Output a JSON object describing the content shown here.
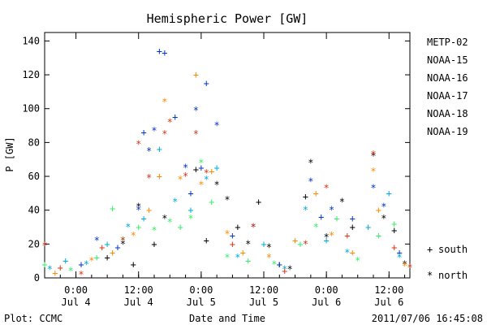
{
  "chart_data": {
    "type": "scatter",
    "title": "Hemispheric Power [GW]",
    "ylabel": "P [GW]",
    "xlabel": "Date and Time",
    "ylim": [
      0,
      145
    ],
    "yticks": [
      0,
      20,
      40,
      60,
      80,
      100,
      120,
      140
    ],
    "xlim": [
      "2011-07-03T18:00",
      "2011-07-06T16:00"
    ],
    "xticks": [
      {
        "x": "2011-07-04T00:00",
        "time": "0:00",
        "date": "Jul 4"
      },
      {
        "x": "2011-07-04T12:00",
        "time": "12:00",
        "date": "Jul 4"
      },
      {
        "x": "2011-07-05T00:00",
        "time": "0:00",
        "date": "Jul 5"
      },
      {
        "x": "2011-07-05T12:00",
        "time": "12:00",
        "date": "Jul 5"
      },
      {
        "x": "2011-07-06T00:00",
        "time": "0:00",
        "date": "Jul 6"
      },
      {
        "x": "2011-07-06T12:00",
        "time": "12:00",
        "date": "Jul 6"
      }
    ],
    "legend_position": "right",
    "hemisphere_legend": [
      {
        "symbol": "+",
        "label": "south"
      },
      {
        "symbol": "*",
        "label": "north"
      }
    ],
    "series": [
      {
        "name": "METP-02",
        "color": "#000000",
        "points": [
          [
            "2011-07-04T06:00",
            12,
            "+"
          ],
          [
            "2011-07-04T09:00",
            20,
            "*"
          ],
          [
            "2011-07-04T11:00",
            8,
            "+"
          ],
          [
            "2011-07-04T12:00",
            42,
            "*"
          ],
          [
            "2011-07-04T15:00",
            20,
            "+"
          ],
          [
            "2011-07-04T17:00",
            35,
            "*"
          ],
          [
            "2011-07-04T23:00",
            64,
            "+"
          ],
          [
            "2011-07-05T01:00",
            22,
            "+"
          ],
          [
            "2011-07-05T03:00",
            55,
            "*"
          ],
          [
            "2011-07-05T05:00",
            46,
            "*"
          ],
          [
            "2011-07-05T07:00",
            30,
            "+"
          ],
          [
            "2011-07-05T09:00",
            20,
            "*"
          ],
          [
            "2011-07-05T11:00",
            45,
            "+"
          ],
          [
            "2011-07-05T13:00",
            18,
            "*"
          ],
          [
            "2011-07-05T15:00",
            8,
            "+"
          ],
          [
            "2011-07-05T17:00",
            5,
            "*"
          ],
          [
            "2011-07-05T20:00",
            48,
            "+"
          ],
          [
            "2011-07-05T21:00",
            68,
            "*"
          ],
          [
            "2011-07-06T00:00",
            24,
            "*"
          ],
          [
            "2011-07-06T03:00",
            45,
            "*"
          ],
          [
            "2011-07-06T05:00",
            30,
            "+"
          ],
          [
            "2011-07-06T09:00",
            72,
            "*"
          ],
          [
            "2011-07-06T11:00",
            35,
            "*"
          ],
          [
            "2011-07-06T13:00",
            28,
            "+"
          ],
          [
            "2011-07-06T15:00",
            8,
            "*"
          ]
        ]
      },
      {
        "name": "NOAA-15",
        "color": "#0033cc",
        "points": [
          [
            "2011-07-04T01:00",
            8,
            "+"
          ],
          [
            "2011-07-04T04:00",
            22,
            "*"
          ],
          [
            "2011-07-04T08:00",
            18,
            "+"
          ],
          [
            "2011-07-04T12:00",
            40,
            "*"
          ],
          [
            "2011-07-04T13:00",
            86,
            "+"
          ],
          [
            "2011-07-04T14:00",
            75,
            "*"
          ],
          [
            "2011-07-04T15:00",
            87,
            "*"
          ],
          [
            "2011-07-04T16:00",
            134,
            "+"
          ],
          [
            "2011-07-04T17:00",
            133,
            "+"
          ],
          [
            "2011-07-04T19:00",
            95,
            "+"
          ],
          [
            "2011-07-04T21:00",
            65,
            "*"
          ],
          [
            "2011-07-04T22:00",
            50,
            "+"
          ],
          [
            "2011-07-04T23:00",
            99,
            "*"
          ],
          [
            "2011-07-05T00:00",
            65,
            "+"
          ],
          [
            "2011-07-05T01:00",
            115,
            "+"
          ],
          [
            "2011-07-05T03:00",
            90,
            "*"
          ],
          [
            "2011-07-05T06:00",
            25,
            "+"
          ],
          [
            "2011-07-05T10:00",
            30,
            "*"
          ],
          [
            "2011-07-05T15:00",
            8,
            "+"
          ],
          [
            "2011-07-05T21:00",
            57,
            "*"
          ],
          [
            "2011-07-05T23:00",
            36,
            "+"
          ],
          [
            "2011-07-06T01:00",
            40,
            "*"
          ],
          [
            "2011-07-06T05:00",
            35,
            "+"
          ],
          [
            "2011-07-06T09:00",
            53,
            "*"
          ],
          [
            "2011-07-06T11:00",
            42,
            "*"
          ],
          [
            "2011-07-06T14:00",
            15,
            "+"
          ]
        ]
      },
      {
        "name": "NOAA-16",
        "color": "#00aadd",
        "points": [
          [
            "2011-07-03T19:00",
            5,
            "*"
          ],
          [
            "2011-07-03T22:00",
            10,
            "+"
          ],
          [
            "2011-07-04T02:00",
            8,
            "*"
          ],
          [
            "2011-07-04T06:00",
            20,
            "+"
          ],
          [
            "2011-07-04T10:00",
            30,
            "*"
          ],
          [
            "2011-07-04T13:00",
            35,
            "+"
          ],
          [
            "2011-07-04T16:00",
            76,
            "+"
          ],
          [
            "2011-07-04T19:00",
            45,
            "*"
          ],
          [
            "2011-07-04T22:00",
            40,
            "+"
          ],
          [
            "2011-07-05T01:00",
            58,
            "*"
          ],
          [
            "2011-07-05T03:00",
            65,
            "+"
          ],
          [
            "2011-07-05T07:00",
            12,
            "*"
          ],
          [
            "2011-07-05T12:00",
            20,
            "+"
          ],
          [
            "2011-07-05T16:00",
            5,
            "*"
          ],
          [
            "2011-07-05T20:00",
            40,
            "*"
          ],
          [
            "2011-07-06T00:00",
            22,
            "+"
          ],
          [
            "2011-07-06T04:00",
            15,
            "*"
          ],
          [
            "2011-07-06T08:00",
            30,
            "+"
          ],
          [
            "2011-07-06T12:00",
            50,
            "+"
          ],
          [
            "2011-07-06T14:00",
            12,
            "*"
          ]
        ]
      },
      {
        "name": "NOAA-17",
        "color": "#33ee66",
        "points": [
          [
            "2011-07-03T18:00",
            8,
            "+"
          ],
          [
            "2011-07-03T23:00",
            4,
            "*"
          ],
          [
            "2011-07-04T04:00",
            12,
            "+"
          ],
          [
            "2011-07-04T07:00",
            41,
            "+"
          ],
          [
            "2011-07-04T09:00",
            22,
            "*"
          ],
          [
            "2011-07-04T12:00",
            30,
            "+"
          ],
          [
            "2011-07-04T15:00",
            28,
            "*"
          ],
          [
            "2011-07-04T18:00",
            33,
            "*"
          ],
          [
            "2011-07-04T20:00",
            30,
            "+"
          ],
          [
            "2011-07-04T22:00",
            35,
            "*"
          ],
          [
            "2011-07-05T00:00",
            68,
            "*"
          ],
          [
            "2011-07-05T02:00",
            45,
            "+"
          ],
          [
            "2011-07-05T05:00",
            12,
            "*"
          ],
          [
            "2011-07-05T09:00",
            10,
            "+"
          ],
          [
            "2011-07-05T14:00",
            8,
            "*"
          ],
          [
            "2011-07-05T19:00",
            20,
            "+"
          ],
          [
            "2011-07-05T22:00",
            30,
            "*"
          ],
          [
            "2011-07-06T02:00",
            35,
            "+"
          ],
          [
            "2011-07-06T06:00",
            10,
            "*"
          ],
          [
            "2011-07-06T10:00",
            25,
            "+"
          ],
          [
            "2011-07-06T13:00",
            32,
            "+"
          ]
        ]
      },
      {
        "name": "NOAA-18",
        "color": "#ff8800",
        "points": [
          [
            "2011-07-03T20:00",
            3,
            "+"
          ],
          [
            "2011-07-04T03:00",
            10,
            "*"
          ],
          [
            "2011-07-04T07:00",
            15,
            "+"
          ],
          [
            "2011-07-04T11:00",
            25,
            "*"
          ],
          [
            "2011-07-04T14:00",
            40,
            "+"
          ],
          [
            "2011-07-04T16:00",
            60,
            "+"
          ],
          [
            "2011-07-04T17:00",
            104,
            "*"
          ],
          [
            "2011-07-04T20:00",
            58,
            "*"
          ],
          [
            "2011-07-04T23:00",
            120,
            "+"
          ],
          [
            "2011-07-05T00:00",
            55,
            "*"
          ],
          [
            "2011-07-05T02:00",
            63,
            "+"
          ],
          [
            "2011-07-05T05:00",
            26,
            "*"
          ],
          [
            "2011-07-05T08:00",
            15,
            "+"
          ],
          [
            "2011-07-05T13:00",
            12,
            "*"
          ],
          [
            "2011-07-05T18:00",
            22,
            "+"
          ],
          [
            "2011-07-05T22:00",
            50,
            "+"
          ],
          [
            "2011-07-06T01:00",
            25,
            "*"
          ],
          [
            "2011-07-06T05:00",
            15,
            "+"
          ],
          [
            "2011-07-06T09:00",
            63,
            "*"
          ],
          [
            "2011-07-06T10:00",
            40,
            "+"
          ],
          [
            "2011-07-06T15:00",
            7,
            "*"
          ]
        ]
      },
      {
        "name": "NOAA-19",
        "color": "#dd3311",
        "points": [
          [
            "2011-07-03T18:00",
            19,
            "*"
          ],
          [
            "2011-07-03T21:00",
            6,
            "+"
          ],
          [
            "2011-07-04T01:00",
            2,
            "*"
          ],
          [
            "2011-07-04T05:00",
            18,
            "+"
          ],
          [
            "2011-07-04T09:00",
            22,
            "*"
          ],
          [
            "2011-07-04T12:00",
            79,
            "*"
          ],
          [
            "2011-07-04T14:00",
            59,
            "*"
          ],
          [
            "2011-07-04T17:00",
            85,
            "*"
          ],
          [
            "2011-07-04T18:00",
            92,
            "*"
          ],
          [
            "2011-07-04T21:00",
            60,
            "*"
          ],
          [
            "2011-07-04T23:00",
            85,
            "*"
          ],
          [
            "2011-07-05T01:00",
            62,
            "*"
          ],
          [
            "2011-07-05T06:00",
            20,
            "+"
          ],
          [
            "2011-07-05T10:00",
            30,
            "*"
          ],
          [
            "2011-07-05T16:00",
            4,
            "+"
          ],
          [
            "2011-07-05T20:00",
            20,
            "*"
          ],
          [
            "2011-07-06T00:00",
            53,
            "*"
          ],
          [
            "2011-07-06T04:00",
            25,
            "+"
          ],
          [
            "2011-07-06T09:00",
            73,
            "*"
          ],
          [
            "2011-07-06T13:00",
            18,
            "+"
          ],
          [
            "2011-07-06T16:00",
            6,
            "*"
          ]
        ]
      }
    ]
  },
  "footer": {
    "plot_label": "Plot: CCMC",
    "timestamp": "2011/07/06 16:45:08"
  }
}
